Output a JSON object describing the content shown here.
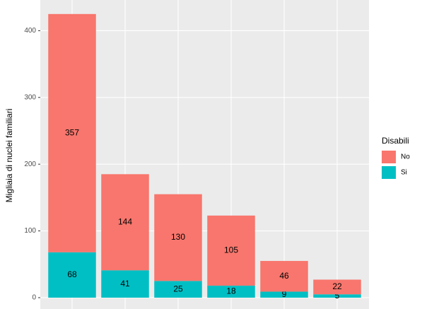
{
  "chart_data": {
    "type": "stacked-bar",
    "y_label": "Migliaia di nuclei familiari",
    "categories": [
      null,
      null,
      null,
      null,
      null,
      null
    ],
    "series": [
      {
        "name": "Si",
        "color": "#00BFC4",
        "values": [
          68,
          41,
          25,
          18,
          9,
          5
        ]
      },
      {
        "name": "No",
        "color": "#F8766D",
        "values": [
          357,
          144,
          130,
          105,
          46,
          22
        ]
      }
    ],
    "legend_title": "Disabili",
    "legend_order": [
      "No",
      "Si"
    ],
    "legend_position": "right",
    "ylim": [
      -17,
      446
    ],
    "yticks": [
      0,
      100,
      200,
      300,
      400
    ],
    "grid": true
  }
}
